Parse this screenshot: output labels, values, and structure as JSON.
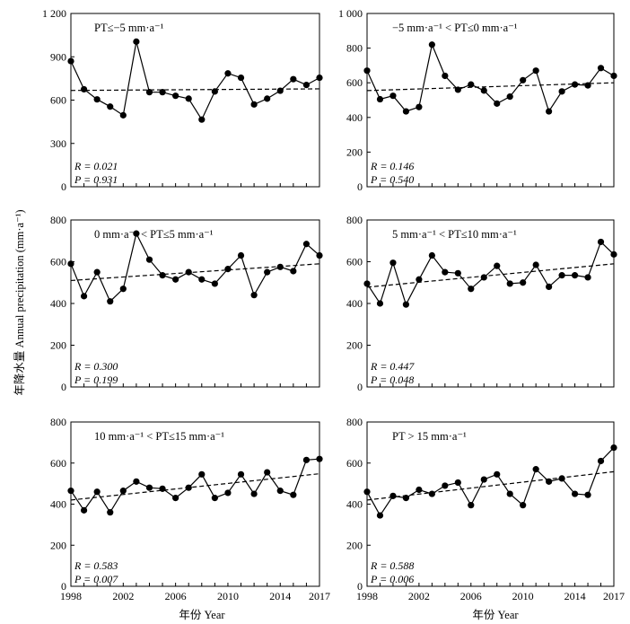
{
  "figure": {
    "ylabel": "年降水量 Annual precipitation (mm·a⁻¹)",
    "xlabel": "年份 Year"
  },
  "chart_data": [
    {
      "type": "line",
      "title": "PT≤−5 mm·a⁻¹",
      "x": [
        1998,
        1999,
        2000,
        2001,
        2002,
        2003,
        2004,
        2005,
        2006,
        2007,
        2008,
        2009,
        2010,
        2011,
        2012,
        2013,
        2014,
        2015,
        2016,
        2017
      ],
      "series": [
        {
          "values": [
            870,
            675,
            605,
            555,
            495,
            1005,
            655,
            655,
            630,
            610,
            465,
            660,
            785,
            755,
            570,
            610,
            665,
            745,
            705,
            755
          ],
          "marker": "circle-filled",
          "line": "solid"
        }
      ],
      "trend": {
        "start": 667,
        "end": 678,
        "line": "dashed"
      },
      "stats": {
        "r": "R = 0.021",
        "p": "P = 0.931"
      },
      "yticks": [
        "0",
        "300",
        "600",
        "900",
        "1 200"
      ],
      "xticks": [
        "1998",
        "2002",
        "2006",
        "2010",
        "2014",
        "2017"
      ],
      "ylim": [
        0,
        1200
      ],
      "xlim": [
        1998,
        2017
      ]
    },
    {
      "type": "line",
      "title": "−5 mm·a⁻¹ < PT≤0  mm·a⁻¹",
      "x": [
        1998,
        1999,
        2000,
        2001,
        2002,
        2003,
        2004,
        2005,
        2006,
        2007,
        2008,
        2009,
        2010,
        2011,
        2012,
        2013,
        2014,
        2015,
        2016,
        2017
      ],
      "series": [
        {
          "values": [
            670,
            505,
            525,
            435,
            460,
            820,
            640,
            560,
            590,
            555,
            480,
            520,
            615,
            670,
            435,
            550,
            590,
            585,
            685,
            640
          ],
          "marker": "circle-filled",
          "line": "solid"
        }
      ],
      "trend": {
        "start": 555,
        "end": 600,
        "line": "dashed"
      },
      "stats": {
        "r": "R = 0.146",
        "p": "P = 0.540"
      },
      "yticks": [
        "0",
        "200",
        "400",
        "600",
        "800",
        "1 000"
      ],
      "xticks": [
        "1998",
        "2002",
        "2006",
        "2010",
        "2014",
        "2017"
      ],
      "ylim": [
        0,
        1000
      ],
      "xlim": [
        1998,
        2017
      ]
    },
    {
      "type": "line",
      "title": "0 mm·a⁻¹ < PT≤5 mm·a⁻¹",
      "x": [
        1998,
        1999,
        2000,
        2001,
        2002,
        2003,
        2004,
        2005,
        2006,
        2007,
        2008,
        2009,
        2010,
        2011,
        2012,
        2013,
        2014,
        2015,
        2016,
        2017
      ],
      "series": [
        {
          "values": [
            590,
            435,
            550,
            410,
            470,
            735,
            610,
            535,
            515,
            550,
            515,
            495,
            565,
            630,
            440,
            550,
            575,
            555,
            685,
            630
          ],
          "marker": "circle-filled",
          "line": "solid"
        }
      ],
      "trend": {
        "start": 510,
        "end": 590,
        "line": "dashed"
      },
      "stats": {
        "r": "R = 0.300",
        "p": "P = 0.199"
      },
      "yticks": [
        "0",
        "200",
        "400",
        "600",
        "800"
      ],
      "xticks": [
        "1998",
        "2002",
        "2006",
        "2010",
        "2014",
        "2017"
      ],
      "ylim": [
        0,
        800
      ],
      "xlim": [
        1998,
        2017
      ]
    },
    {
      "type": "line",
      "title": "5 mm·a⁻¹ < PT≤10 mm·a⁻¹",
      "x": [
        1998,
        1999,
        2000,
        2001,
        2002,
        2003,
        2004,
        2005,
        2006,
        2007,
        2008,
        2009,
        2010,
        2011,
        2012,
        2013,
        2014,
        2015,
        2016,
        2017
      ],
      "series": [
        {
          "values": [
            495,
            400,
            595,
            395,
            515,
            630,
            550,
            545,
            470,
            525,
            580,
            495,
            500,
            585,
            480,
            535,
            535,
            525,
            695,
            635
          ],
          "marker": "circle-filled",
          "line": "solid"
        }
      ],
      "trend": {
        "start": 478,
        "end": 590,
        "line": "dashed"
      },
      "stats": {
        "r": "R = 0.447",
        "p": "P = 0.048"
      },
      "yticks": [
        "0",
        "200",
        "400",
        "600",
        "800"
      ],
      "xticks": [
        "1998",
        "2002",
        "2006",
        "2010",
        "2014",
        "2017"
      ],
      "ylim": [
        0,
        800
      ],
      "xlim": [
        1998,
        2017
      ]
    },
    {
      "type": "line",
      "title": "10 mm·a⁻¹ < PT≤15 mm·a⁻¹",
      "x": [
        1998,
        1999,
        2000,
        2001,
        2002,
        2003,
        2004,
        2005,
        2006,
        2007,
        2008,
        2009,
        2010,
        2011,
        2012,
        2013,
        2014,
        2015,
        2016,
        2017
      ],
      "series": [
        {
          "values": [
            465,
            370,
            460,
            360,
            465,
            510,
            480,
            475,
            430,
            480,
            545,
            430,
            455,
            545,
            450,
            555,
            465,
            445,
            615,
            620
          ],
          "marker": "circle-filled",
          "line": "solid"
        }
      ],
      "trend": {
        "start": 420,
        "end": 548,
        "line": "dashed"
      },
      "stats": {
        "r": "R = 0.583",
        "p": "P = 0.007"
      },
      "yticks": [
        "0",
        "200",
        "400",
        "600",
        "800"
      ],
      "xticks": [
        "1998",
        "2002",
        "2006",
        "2010",
        "2014",
        "2017"
      ],
      "ylim": [
        0,
        800
      ],
      "xlim": [
        1998,
        2017
      ]
    },
    {
      "type": "line",
      "title": "PT > 15 mm·a⁻¹",
      "x": [
        1998,
        1999,
        2000,
        2001,
        2002,
        2003,
        2004,
        2005,
        2006,
        2007,
        2008,
        2009,
        2010,
        2011,
        2012,
        2013,
        2014,
        2015,
        2016,
        2017
      ],
      "series": [
        {
          "values": [
            460,
            345,
            440,
            430,
            470,
            450,
            490,
            505,
            395,
            520,
            545,
            450,
            395,
            570,
            510,
            525,
            450,
            445,
            610,
            675
          ],
          "marker": "circle-filled",
          "line": "solid"
        }
      ],
      "trend": {
        "start": 420,
        "end": 558,
        "line": "dashed"
      },
      "stats": {
        "r": "R = 0.588",
        "p": "P = 0.006"
      },
      "yticks": [
        "0",
        "200",
        "400",
        "600",
        "800"
      ],
      "xticks": [
        "1998",
        "2002",
        "2006",
        "2010",
        "2014",
        "2017"
      ],
      "ylim": [
        0,
        800
      ],
      "xlim": [
        1998,
        2017
      ]
    }
  ]
}
